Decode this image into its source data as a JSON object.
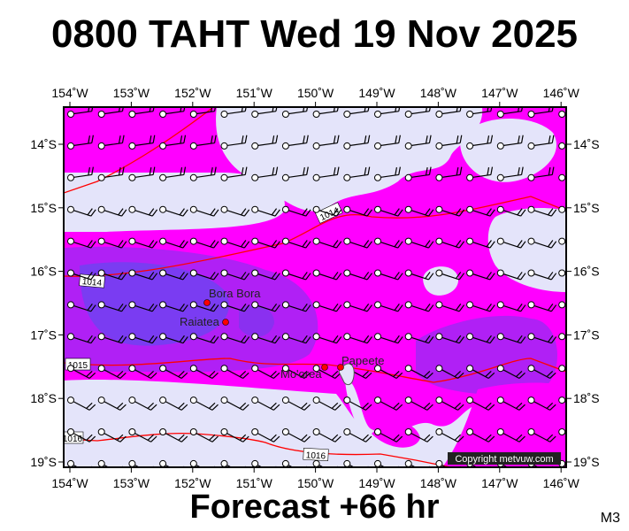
{
  "title": "0800 TAHT Wed 19 Nov 2025",
  "footer": "Forecast +66 hr",
  "model": "M3",
  "copyright": "Copyright metvuw.com",
  "lon_labels": [
    "154˚W",
    "153˚W",
    "152˚W",
    "151˚W",
    "150˚W",
    "149˚W",
    "148˚W",
    "147˚W",
    "146˚W"
  ],
  "lat_labels": [
    "14˚S",
    "15˚S",
    "16˚S",
    "17˚S",
    "18˚S",
    "19˚S"
  ],
  "places": {
    "bora_bora": "Bora Bora",
    "raiatea": "Raiatea",
    "moorea": "Mo'orea",
    "papeete": "Papeete"
  },
  "isobars": {
    "a": "1014",
    "b": "1014",
    "c": "1015",
    "d": "1016",
    "e": "1016"
  },
  "colors": {
    "lavender": "#e4e4fa",
    "magenta": "#ff00ff",
    "purple": "#b020f5",
    "violet": "#8a30f0",
    "deep": "#7a3cf2",
    "isobar": "#ff0000"
  }
}
